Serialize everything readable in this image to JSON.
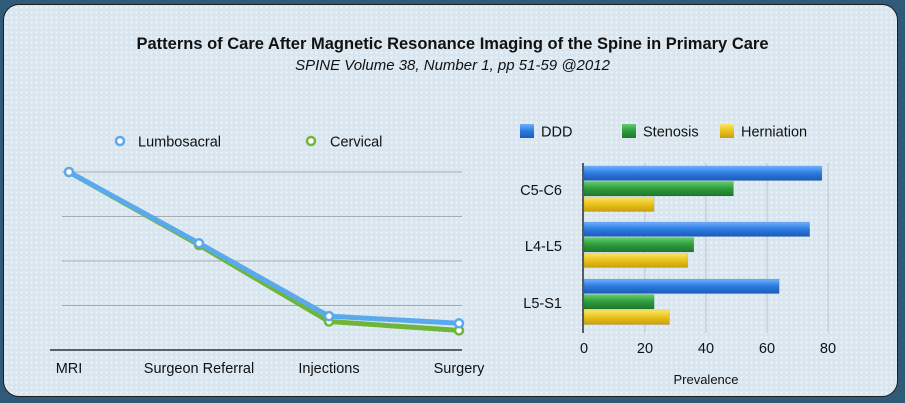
{
  "header": {
    "title": "Patterns of Care After Magnetic Resonance Imaging of the Spine in Primary Care",
    "subtitle": "SPINE Volume 38, Number 1, pp 51-59 @2012"
  },
  "colors": {
    "lumbosacral": "#5aa9ec",
    "cervical": "#6fb53a",
    "ddd": "#2c7ae0",
    "stenosis": "#2e9a3c",
    "herniation": "#e8c21c"
  },
  "chart_data": [
    {
      "type": "line",
      "title": "",
      "categories": [
        "MRI",
        "Surgeon Referral",
        "Injections",
        "Surgery"
      ],
      "series": [
        {
          "name": "Lumbosacral",
          "values": [
            100,
            60,
            19,
            15
          ]
        },
        {
          "name": "Cervical",
          "values": [
            100,
            59,
            16,
            11
          ]
        }
      ],
      "ylim": [
        0,
        115
      ],
      "yticks_shown": false,
      "grid": true,
      "legend": "top"
    },
    {
      "type": "bar",
      "orientation": "horizontal",
      "categories": [
        "C5-C6",
        "L4-L5",
        "L5-S1"
      ],
      "series": [
        {
          "name": "DDD",
          "values": [
            78,
            74,
            64
          ]
        },
        {
          "name": "Stenosis",
          "values": [
            49,
            36,
            23
          ]
        },
        {
          "name": "Herniation",
          "values": [
            23,
            34,
            28
          ]
        }
      ],
      "xlabel": "Prevalence",
      "xlim": [
        0,
        80
      ],
      "xticks": [
        "0",
        "20",
        "40",
        "60",
        "80"
      ],
      "grid": true,
      "legend": "top"
    }
  ]
}
